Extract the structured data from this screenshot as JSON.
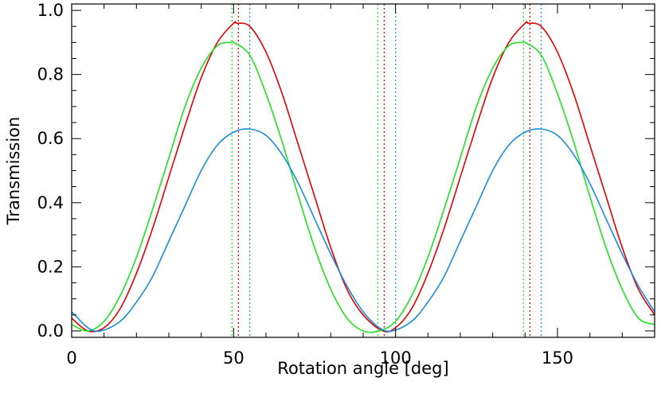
{
  "chart_data": {
    "type": "line",
    "title": "",
    "xlabel": "Rotation angle [deg]",
    "ylabel": "Transmission",
    "xlim": [
      0,
      180
    ],
    "ylim": [
      -0.02,
      1.02
    ],
    "grid": false,
    "legend": "none",
    "x_ticks": [
      {
        "value": 0,
        "label": "0"
      },
      {
        "value": 50,
        "label": "50"
      },
      {
        "value": 100,
        "label": "100"
      },
      {
        "value": 150,
        "label": "150"
      }
    ],
    "y_ticks": [
      {
        "value": 0.0,
        "label": "0.0"
      },
      {
        "value": 0.2,
        "label": "0.2"
      },
      {
        "value": 0.4,
        "label": "0.4"
      },
      {
        "value": 0.6,
        "label": "0.6"
      },
      {
        "value": 0.8,
        "label": "0.8"
      },
      {
        "value": 1.0,
        "label": "1.0"
      }
    ],
    "series": [
      {
        "color": "#e00000",
        "x": [
          0,
          5,
          10,
          15,
          20,
          25,
          30,
          35,
          40,
          45,
          50,
          51,
          55,
          60,
          65,
          70,
          75,
          80,
          85,
          90,
          96,
          100,
          105,
          110,
          115,
          120,
          125,
          130,
          135,
          140,
          141,
          145,
          150,
          155,
          160,
          165,
          170,
          175,
          180
        ],
        "y": [
          0.04,
          0.0,
          0.01,
          0.07,
          0.18,
          0.32,
          0.48,
          0.64,
          0.79,
          0.9,
          0.96,
          0.96,
          0.95,
          0.87,
          0.74,
          0.58,
          0.42,
          0.26,
          0.13,
          0.05,
          0.0,
          0.01,
          0.07,
          0.18,
          0.32,
          0.48,
          0.64,
          0.79,
          0.9,
          0.96,
          0.96,
          0.95,
          0.87,
          0.74,
          0.58,
          0.42,
          0.26,
          0.13,
          0.05
        ]
      },
      {
        "color": "#22e022",
        "x": [
          0,
          5,
          10,
          15,
          20,
          25,
          30,
          35,
          40,
          45,
          49,
          50,
          55,
          60,
          65,
          70,
          75,
          80,
          85,
          90,
          95,
          100,
          105,
          110,
          115,
          120,
          125,
          130,
          135,
          139,
          140,
          145,
          150,
          155,
          160,
          165,
          170,
          175,
          180
        ],
        "y": [
          0.02,
          0.0,
          0.03,
          0.11,
          0.23,
          0.38,
          0.54,
          0.7,
          0.82,
          0.89,
          0.9,
          0.9,
          0.86,
          0.74,
          0.59,
          0.42,
          0.26,
          0.13,
          0.04,
          0.0,
          0.0,
          0.03,
          0.11,
          0.23,
          0.38,
          0.54,
          0.7,
          0.82,
          0.89,
          0.9,
          0.9,
          0.86,
          0.74,
          0.59,
          0.42,
          0.26,
          0.13,
          0.04,
          0.02
        ]
      },
      {
        "color": "#1a8ce0",
        "x": [
          0,
          5,
          9,
          15,
          20,
          25,
          30,
          35,
          40,
          45,
          50,
          55,
          60,
          65,
          70,
          75,
          80,
          85,
          90,
          95,
          99,
          105,
          110,
          115,
          120,
          125,
          130,
          135,
          140,
          145,
          150,
          155,
          160,
          165,
          170,
          175,
          180
        ],
        "y": [
          0.06,
          0.01,
          0.0,
          0.03,
          0.09,
          0.17,
          0.28,
          0.39,
          0.5,
          0.58,
          0.62,
          0.63,
          0.61,
          0.55,
          0.46,
          0.35,
          0.24,
          0.14,
          0.06,
          0.01,
          0.0,
          0.03,
          0.09,
          0.17,
          0.28,
          0.39,
          0.5,
          0.58,
          0.62,
          0.63,
          0.61,
          0.55,
          0.46,
          0.35,
          0.24,
          0.14,
          0.06
        ]
      }
    ],
    "vertical_markers": [
      {
        "x": 49.5,
        "color": "#22e022"
      },
      {
        "x": 51.5,
        "color": "#e00000"
      },
      {
        "x": 55.0,
        "color": "#1a8ce0"
      },
      {
        "x": 94.5,
        "color": "#22e022"
      },
      {
        "x": 96.5,
        "color": "#e00000"
      },
      {
        "x": 100.0,
        "color": "#1a8ce0"
      },
      {
        "x": 139.5,
        "color": "#22e022"
      },
      {
        "x": 141.5,
        "color": "#e00000"
      },
      {
        "x": 145.0,
        "color": "#1a8ce0"
      }
    ]
  }
}
